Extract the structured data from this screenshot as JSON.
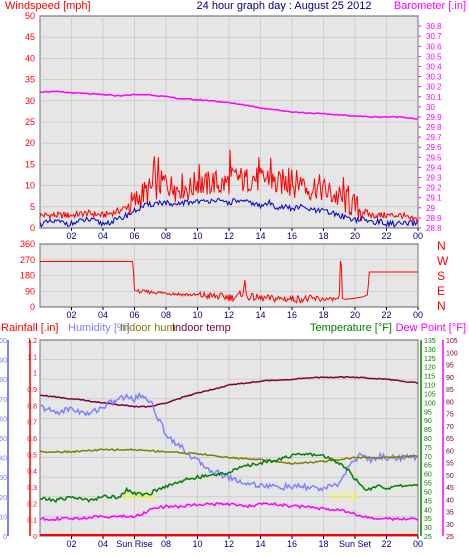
{
  "title": "24 hour graph day : August 25 2012",
  "colors": {
    "wind": "#ff0000",
    "gust": "#ff0000",
    "avgwind": "#0000cc",
    "baro": "#ff00ff",
    "dir": "#ff0000",
    "hum": "#8080ff",
    "inhum": "#808000",
    "intemp": "#800040",
    "temp": "#008000",
    "dew": "#ff00ff",
    "rain": "#ff0000",
    "grid": "#c0c0c0",
    "bg": "#e6e6e6",
    "sunlabel": "#ffff00"
  },
  "x_ticks": [
    "02",
    "04",
    "06",
    "08",
    "10",
    "12",
    "14",
    "16",
    "18",
    "20",
    "22",
    "00"
  ],
  "x_ticks_bottom": [
    "02",
    "04",
    "Sun Rise",
    "08",
    "10",
    "12",
    "14",
    "16",
    "18",
    "Sun Set",
    "22",
    "00"
  ],
  "chart_data": [
    {
      "type": "line",
      "name": "wind-barometer",
      "x_range": [
        0,
        24
      ],
      "left_axis": {
        "label": "Windspeed [mph]",
        "ylim": [
          0,
          50
        ],
        "ticks": [
          0,
          5,
          10,
          15,
          20,
          25,
          30,
          35,
          40,
          45,
          50
        ]
      },
      "right_axis": {
        "label": "Barometer [.in]",
        "ylim": [
          28.8,
          30.9
        ],
        "ticks": [
          28.8,
          28.9,
          29,
          29.1,
          29.2,
          29.3,
          29.4,
          29.5,
          29.6,
          29.7,
          29.8,
          29.9,
          30,
          30.1,
          30.2,
          30.3,
          30.4,
          30.5,
          30.6,
          30.7,
          30.8
        ]
      },
      "series": [
        {
          "key": "gust",
          "axis": "left",
          "x": [
            0,
            1,
            2,
            3,
            4,
            5,
            5.5,
            6,
            6.5,
            7,
            7.5,
            8,
            8.5,
            9,
            9.5,
            10,
            10.5,
            11,
            11.5,
            12,
            12.5,
            13,
            13.5,
            14,
            14.5,
            15,
            15.5,
            16,
            16.5,
            17,
            17.5,
            18,
            18.5,
            19,
            19.5,
            20,
            20.5,
            21,
            21.5,
            22,
            22.5,
            23,
            23.5,
            24
          ],
          "y": [
            3,
            3,
            3,
            3.5,
            3,
            4,
            5,
            6,
            8,
            9,
            10,
            11,
            9,
            10,
            9,
            11,
            10,
            11,
            10,
            11,
            12,
            11,
            12,
            11,
            12,
            10,
            11,
            10,
            11,
            9,
            10,
            9,
            8,
            7,
            6,
            5,
            4,
            3,
            3,
            3,
            3,
            3,
            2,
            2
          ]
        },
        {
          "key": "avgwind",
          "axis": "left",
          "x": [
            0,
            1,
            2,
            3,
            4,
            5,
            5.5,
            6,
            6.5,
            7,
            7.5,
            8,
            8.5,
            9,
            9.5,
            10,
            10.5,
            11,
            11.5,
            12,
            12.5,
            13,
            13.5,
            14,
            14.5,
            15,
            15.5,
            16,
            16.5,
            17,
            17.5,
            18,
            18.5,
            19,
            19.5,
            20,
            20.5,
            21,
            21.5,
            22,
            22.5,
            23,
            23.5,
            24
          ],
          "y": [
            1,
            1.5,
            1,
            2,
            1,
            2,
            3,
            4,
            5,
            5.5,
            6,
            6,
            5,
            6,
            6,
            6.5,
            6,
            7,
            6,
            6,
            6.5,
            6,
            6,
            5,
            6,
            5,
            5,
            4.5,
            5,
            4.5,
            4,
            4,
            3.5,
            3,
            2.5,
            2,
            2,
            1.5,
            1.5,
            1,
            1,
            1,
            1,
            1
          ]
        },
        {
          "key": "baro",
          "axis": "right",
          "x": [
            0,
            1,
            2,
            3,
            4,
            5,
            6,
            7,
            8,
            9,
            10,
            11,
            12,
            13,
            14,
            15,
            16,
            17,
            18,
            19,
            20,
            21,
            22,
            23,
            23.5,
            24
          ],
          "y": [
            30.15,
            30.15,
            30.14,
            30.13,
            30.12,
            30.11,
            30.12,
            30.12,
            30.1,
            30.08,
            30.07,
            30.06,
            30.04,
            30.02,
            29.99,
            29.97,
            29.95,
            29.94,
            29.93,
            29.92,
            29.91,
            29.9,
            29.9,
            29.9,
            29.89,
            29.88
          ]
        }
      ]
    },
    {
      "type": "line",
      "name": "wind-direction",
      "x_range": [
        0,
        24
      ],
      "ylim": [
        0,
        360
      ],
      "y_ticks": [
        0,
        90,
        180,
        270,
        360
      ],
      "right_labels": [
        "N",
        "W",
        "S",
        "E",
        "N"
      ],
      "series": [
        {
          "key": "dir",
          "x": [
            0,
            3,
            5.9,
            6,
            6.2,
            7,
            8,
            9,
            10,
            11,
            12,
            12.5,
            12.9,
            13,
            13.1,
            13.5,
            14,
            15,
            16,
            17,
            18,
            19,
            19.1,
            19.2,
            19.3,
            19.5,
            20,
            20.5,
            20.8,
            20.9,
            21,
            22,
            24
          ],
          "y": [
            260,
            260,
            260,
            95,
            90,
            85,
            80,
            72,
            68,
            62,
            56,
            56,
            85,
            150,
            60,
            56,
            50,
            48,
            46,
            46,
            45,
            45,
            340,
            50,
            45,
            45,
            50,
            58,
            70,
            200,
            200,
            200,
            200
          ]
        }
      ]
    },
    {
      "type": "line",
      "name": "humidity-temperature",
      "x_range": [
        0,
        24
      ],
      "axes": {
        "rain": {
          "label": "Rainfall [.in]",
          "ylim": [
            0,
            1.2
          ],
          "ticks": [
            0,
            0.1,
            0.2,
            0.3,
            0.4,
            0.5,
            0.6,
            0.7,
            0.8,
            0.9,
            1,
            1.1,
            1.2
          ]
        },
        "humidity": {
          "label": "Humidity [%]",
          "ylim": [
            0,
            100
          ],
          "ticks": [
            0,
            10,
            20,
            30,
            40,
            50,
            60,
            70,
            80,
            90,
            100
          ]
        },
        "temperature": {
          "label": "Temperature [°F]",
          "ylim": [
            25,
            135
          ],
          "ticks": [
            25,
            30,
            35,
            40,
            45,
            50,
            55,
            60,
            65,
            70,
            75,
            80,
            85,
            90,
            95,
            100,
            105,
            110,
            115,
            120,
            125,
            130,
            135
          ]
        },
        "dewpoint": {
          "label": "Dew Point [°F]",
          "ylim": [
            25,
            105
          ],
          "ticks": [
            25,
            30,
            35,
            40,
            45,
            50,
            55,
            60,
            65,
            70,
            75,
            80,
            85,
            90,
            95,
            100,
            105
          ]
        }
      },
      "legend": [
        "Rainfall [.in]",
        "Humidity [%]",
        "Indoor hum",
        "Indoor temp",
        "Temperature [°F]",
        "Dew Point [°F]"
      ],
      "annotations": [
        {
          "text": "Sun Rise",
          "x": 6.3
        },
        {
          "text": "Sun Set",
          "x": 19.3
        }
      ],
      "series": [
        {
          "key": "intemp",
          "axis": "humidity",
          "x": [
            0,
            2,
            4,
            6,
            7,
            8,
            10,
            12,
            14,
            16,
            18,
            19,
            20,
            22,
            24
          ],
          "y": [
            72,
            70,
            68,
            66,
            66,
            68,
            73,
            77,
            79,
            80,
            81,
            81,
            81,
            80,
            78
          ]
        },
        {
          "key": "hum",
          "axis": "humidity",
          "x": [
            0,
            1,
            2,
            3,
            4,
            5,
            5.5,
            6,
            6.5,
            7,
            7.5,
            8,
            9,
            10,
            11,
            12,
            13,
            14,
            15,
            16,
            17,
            18,
            18.5,
            19,
            19.5,
            20,
            20.5,
            21,
            21.5,
            22,
            23,
            24
          ],
          "y": [
            66,
            63,
            65,
            62,
            66,
            70,
            71,
            70,
            72,
            69,
            60,
            52,
            45,
            38,
            33,
            30,
            27,
            26,
            25,
            25,
            25,
            24,
            25,
            27,
            34,
            39,
            42,
            38,
            41,
            40,
            40,
            40
          ]
        },
        {
          "key": "inhum",
          "axis": "humidity",
          "x": [
            0,
            2,
            4,
            6,
            8,
            10,
            12,
            14,
            16,
            18,
            20,
            22,
            24
          ],
          "y": [
            43,
            43,
            44,
            44,
            43,
            42,
            40,
            39,
            37,
            38,
            40,
            40,
            41
          ]
        },
        {
          "key": "temp",
          "axis": "temperature",
          "x": [
            0,
            1,
            2,
            3,
            4,
            5,
            5.5,
            6,
            6.5,
            7,
            8,
            9,
            10,
            11,
            12,
            13,
            14,
            15,
            16,
            17,
            18,
            18.5,
            19,
            19.5,
            20,
            20.5,
            21,
            21.5,
            22,
            23,
            24
          ],
          "y": [
            46,
            45,
            47,
            45,
            47,
            47,
            51,
            49,
            48,
            49,
            53,
            56,
            58,
            59,
            61,
            64,
            66,
            68,
            70,
            71,
            70,
            68,
            66,
            63,
            57,
            52,
            51,
            53,
            52,
            53,
            54
          ]
        },
        {
          "key": "dew",
          "axis": "dewpoint",
          "x": [
            0,
            2,
            4,
            6,
            6.5,
            7,
            8,
            9,
            10,
            11,
            12,
            13,
            14,
            15,
            16,
            17,
            18,
            19,
            20,
            21,
            22,
            23,
            24
          ],
          "y": [
            32,
            32,
            33,
            33,
            34,
            36,
            37,
            37,
            38,
            38,
            38,
            37,
            38,
            38,
            37,
            37,
            36,
            36,
            34,
            32,
            32,
            32,
            32
          ]
        },
        {
          "key": "rain",
          "axis": "rain",
          "x": [
            0,
            24
          ],
          "y": [
            0,
            0
          ]
        }
      ]
    }
  ]
}
